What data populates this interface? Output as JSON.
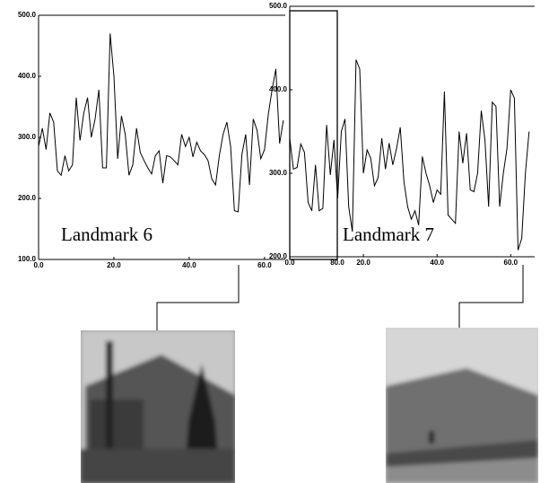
{
  "chart_data": [
    {
      "type": "line",
      "annotation": "Landmark 6",
      "color": "#000000",
      "x": [
        0,
        1,
        2,
        3,
        4,
        5,
        6,
        7,
        8,
        9,
        10,
        11,
        12,
        13,
        14,
        15,
        16,
        17,
        18,
        19,
        20,
        21,
        22,
        23,
        24,
        25,
        26,
        27,
        28,
        29,
        30,
        31,
        32,
        33,
        34,
        35,
        36,
        37,
        38,
        39,
        40,
        41,
        42,
        43,
        44,
        45,
        46,
        47,
        48,
        49,
        50,
        51,
        52,
        53,
        54,
        55,
        56,
        57,
        58,
        59,
        60,
        61,
        62,
        63,
        64,
        65
      ],
      "values": [
        285,
        315,
        280,
        340,
        325,
        245,
        238,
        270,
        245,
        255,
        365,
        295,
        340,
        365,
        300,
        330,
        378,
        250,
        250,
        470,
        400,
        265,
        335,
        305,
        238,
        255,
        315,
        275,
        262,
        250,
        240,
        270,
        278,
        225,
        270,
        268,
        262,
        255,
        305,
        285,
        300,
        268,
        292,
        278,
        272,
        262,
        232,
        222,
        270,
        305,
        325,
        285,
        180,
        178,
        272,
        305,
        222,
        330,
        312,
        265,
        280,
        338,
        378,
        412,
        290,
        328
      ],
      "xlim": [
        0,
        65.5
      ],
      "ylim": [
        100,
        500
      ],
      "xticks": [
        {
          "value": 0,
          "label": "0.0"
        },
        {
          "value": 20,
          "label": "20.0"
        },
        {
          "value": 40,
          "label": "40.0"
        },
        {
          "value": 60,
          "label": "60.0"
        }
      ],
      "yticks": [
        {
          "value": 100,
          "label": "100.0"
        },
        {
          "value": 200,
          "label": "200.0"
        },
        {
          "value": 300,
          "label": "300.0"
        },
        {
          "value": 400,
          "label": "400.0"
        },
        {
          "value": 500,
          "label": "500.0"
        }
      ]
    },
    {
      "type": "line",
      "annotation": "Landmark 7",
      "color": "#000000",
      "x": [
        0,
        1,
        2,
        3,
        4,
        5,
        6,
        7,
        8,
        9,
        10,
        11,
        12,
        13,
        14,
        15,
        16,
        17,
        18,
        19,
        20,
        21,
        22,
        23,
        24,
        25,
        26,
        27,
        28,
        29,
        30,
        31,
        32,
        33,
        34,
        35,
        36,
        37,
        38,
        39,
        40,
        41,
        42,
        43,
        44,
        45,
        46,
        47,
        48,
        49,
        50,
        51,
        52,
        53,
        54,
        55,
        56,
        57,
        58,
        59,
        60,
        61,
        62,
        63,
        64,
        65
      ],
      "values": [
        342,
        305,
        307,
        335,
        325,
        265,
        255,
        310,
        255,
        258,
        358,
        298,
        340,
        270,
        350,
        365,
        260,
        230,
        436,
        425,
        300,
        328,
        318,
        285,
        295,
        342,
        305,
        336,
        310,
        330,
        355,
        290,
        260,
        245,
        255,
        238,
        320,
        300,
        285,
        265,
        280,
        275,
        398,
        250,
        245,
        240,
        350,
        312,
        348,
        280,
        278,
        300,
        375,
        340,
        260,
        385,
        380,
        260,
        300,
        330,
        400,
        390,
        208,
        222,
        300,
        350
      ],
      "xlim": [
        0,
        66.5
      ],
      "ylim": [
        200,
        500
      ],
      "xticks": [
        {
          "value": 0,
          "label": "0.0"
        },
        {
          "value": 20,
          "label": "20.0"
        },
        {
          "value": 40,
          "label": "40.0"
        },
        {
          "value": 60,
          "label": "60.0"
        }
      ],
      "yticks": [
        {
          "value": 200,
          "label": "200.0"
        },
        {
          "value": 300,
          "label": "300.0"
        },
        {
          "value": 400,
          "label": "400.0"
        },
        {
          "value": 500,
          "label": "500.0"
        }
      ],
      "inset": {
        "xlim": [
          0,
          80
        ],
        "xticks": [
          {
            "value": 80,
            "label": "80.0"
          }
        ]
      }
    }
  ]
}
